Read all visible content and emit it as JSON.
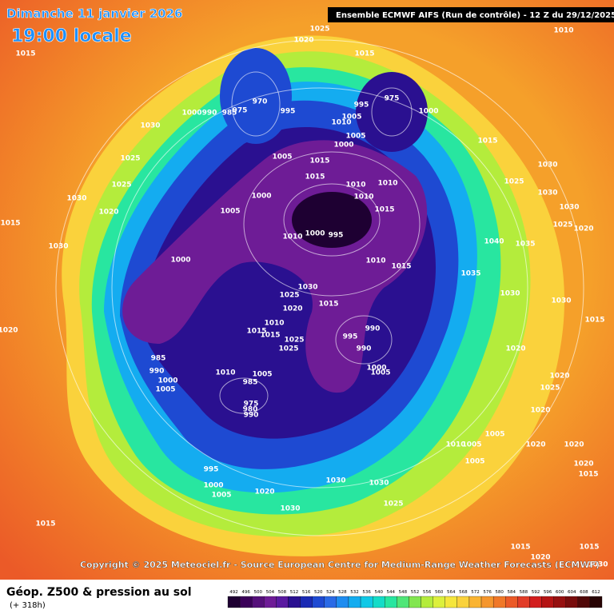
{
  "header": {
    "date": "Dimanche 11 janvier 2026",
    "time": "19:00 locale",
    "model": "Ensemble ECMWF AIFS  (Run de contrôle)  -  12 Z du 29/12/2025"
  },
  "copyright": "Copyright © 2025 Meteociel.fr - Source European Centre for Medium-Range Weather Forecasts (ECMWF)",
  "footer": {
    "title": "Géop. Z500 & pression au sol",
    "subtitle": "(+ 318h)"
  },
  "legend": {
    "levels": [
      492,
      496,
      500,
      504,
      508,
      512,
      516,
      520,
      524,
      528,
      532,
      536,
      540,
      544,
      548,
      552,
      556,
      560,
      564,
      568,
      572,
      576,
      580,
      584,
      588,
      592,
      596,
      600,
      604,
      608,
      612
    ],
    "colors": [
      "#1e0032",
      "#3a0058",
      "#55107a",
      "#6e1c96",
      "#5a1aa0",
      "#2a1090",
      "#1a2ab4",
      "#1e4ad2",
      "#2a6ae6",
      "#1e8cf0",
      "#14acf0",
      "#10c8e6",
      "#14dcc8",
      "#28e6a0",
      "#50e678",
      "#82e650",
      "#b4ec3c",
      "#dcf03c",
      "#f5e63c",
      "#fad23c",
      "#fab432",
      "#f5962d",
      "#f07828",
      "#eb5a28",
      "#e13c28",
      "#d21e1e",
      "#b41414",
      "#961010",
      "#780c0c",
      "#500808",
      "#280404"
    ]
  },
  "isobars": [
    1025,
    1020,
    1010,
    1015,
    1015,
    970,
    975,
    995,
    1000,
    990,
    985,
    975,
    995,
    1000,
    1010,
    1005,
    1005,
    1000,
    1030,
    1025,
    1025,
    1005,
    1015,
    1015,
    1015,
    1030,
    1025,
    1000,
    1010,
    1010,
    1010,
    1015,
    1005,
    1030,
    1020,
    1015,
    1030,
    1010,
    1000,
    995,
    1000,
    1010,
    1015,
    1040,
    1035,
    1030,
    1030,
    1025,
    1020,
    1030,
    1025,
    1020,
    1015,
    1035,
    1030,
    1030,
    1020,
    1010,
    1015,
    1015,
    1025,
    1025,
    990,
    995,
    990,
    1015,
    985,
    990,
    1000,
    1005,
    1010,
    1005,
    985,
    975,
    980,
    990,
    1000,
    1005,
    1020,
    1020,
    1025,
    1020,
    1005,
    1010,
    1005,
    1005,
    1020,
    1020,
    1020,
    1015,
    995,
    1000,
    1005,
    1020,
    1030,
    1030,
    1025,
    1030,
    1015,
    1015,
    1015,
    1020,
    1030
  ]
}
